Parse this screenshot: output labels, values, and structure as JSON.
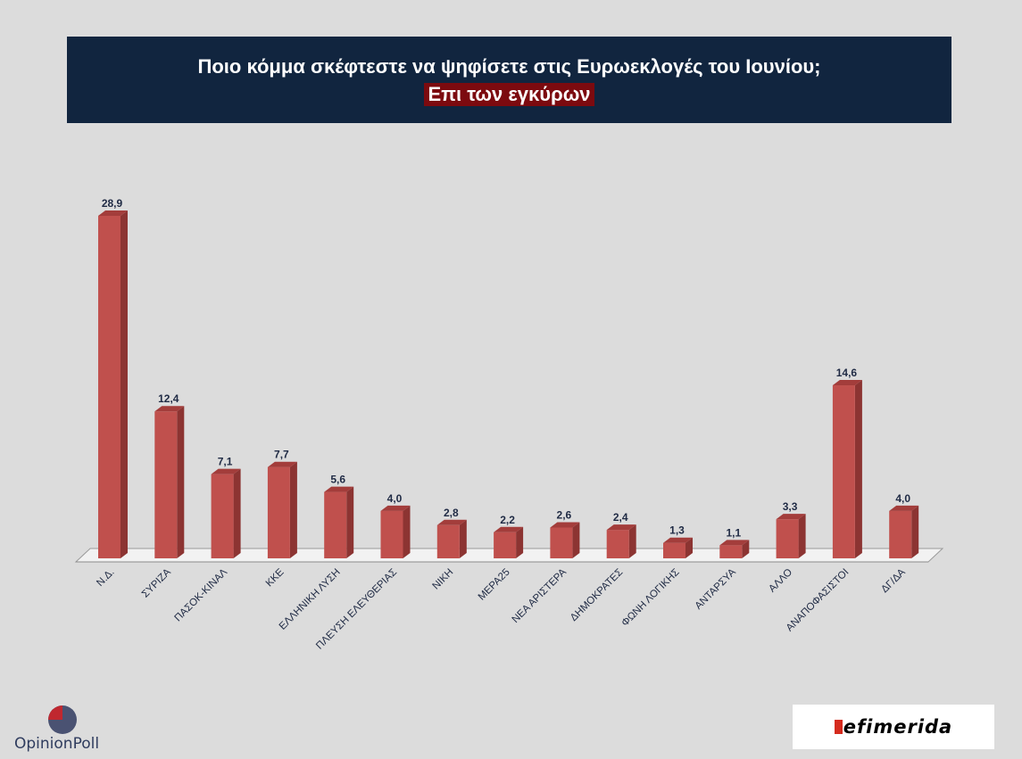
{
  "header": {
    "title": "Ποιο κόμμα σκέφτεστε να ψηφίσετε στις Ευρωεκλογές του Ιουνίου;",
    "subtitle": "Επι των εγκύρων"
  },
  "colors": {
    "background": "#dcdcdc",
    "title_bg": "#11253f",
    "subtitle_bg": "#7c0a0f",
    "bar_front": "#c0504d",
    "bar_side": "#8c3432",
    "bar_top": "#a33d3b",
    "floor": "#f2f2f2"
  },
  "chart_data": {
    "type": "bar",
    "title": "Ποιο κόμμα σκέφτεστε να ψηφίσετε στις Ευρωεκλογές του Ιουνίου;",
    "subtitle": "Επι των εγκύρων",
    "categories": [
      "Ν.Δ.",
      "ΣΥΡΙΖΑ",
      "ΠΑΣΟΚ-ΚΙΝΑΛ",
      "ΚΚΕ",
      "ΕΛΛΗΝΙΚΗ ΛΥΣΗ",
      "ΠΛΕΥΣΗ ΕΛΕΥΘΕΡΙΑΣ",
      "ΝΙΚΗ",
      "ΜΕΡΑ25",
      "ΝΕΑ ΑΡΙΣΤΕΡΑ",
      "ΔΗΜΟΚΡΑΤΕΣ",
      "ΦΩΝΗ ΛΟΓΙΚΗΣ",
      "ΑΝΤΑΡΣΥΑ",
      "ΑΛΛΟ",
      "ΑΝΑΠΟΦΑΣΙΣΤΟΙ",
      "ΔΓ/ΔΑ"
    ],
    "values": [
      28.9,
      12.4,
      7.1,
      7.7,
      5.6,
      4.0,
      2.8,
      2.2,
      2.6,
      2.4,
      1.3,
      1.1,
      3.3,
      14.6,
      4.0
    ],
    "labels": [
      "28,9",
      "12,4",
      "7,1",
      "7,7",
      "5,6",
      "4,0",
      "2,8",
      "2,2",
      "2,6",
      "2,4",
      "1,3",
      "1,1",
      "3,3",
      "14,6",
      "4,0"
    ],
    "xlabel": "",
    "ylabel": "",
    "ylim": [
      0,
      30
    ],
    "grid": false,
    "legend": "none"
  },
  "logos": {
    "left": "OpinionPoll",
    "right_mark": "i",
    "right": "efimerida"
  }
}
